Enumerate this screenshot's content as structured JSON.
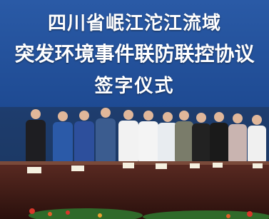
{
  "banner": {
    "lines": [
      "四川省岷江沱江流域",
      "突发环境事件联防联控协议",
      "签字仪式"
    ]
  }
}
